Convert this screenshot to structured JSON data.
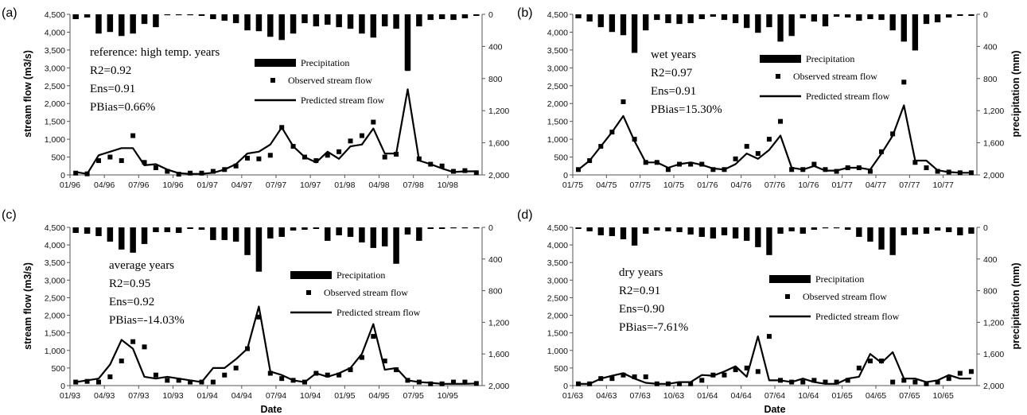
{
  "figure": {
    "left_ylabel": "stream flow (m3/s)",
    "right_ylabel": "precipitation (mm)",
    "xlabel": "Date"
  },
  "legend": {
    "precip": "Precipitation",
    "observed": "Observed stream flow",
    "predicted": "Predicted stream flow"
  },
  "colors": {
    "ink": "#000000",
    "background": "#ffffff"
  },
  "chart_data": [
    {
      "type": "line",
      "panel": "(a)",
      "stats": [
        "reference: high temp. years",
        "R2=0.92",
        "Ens=0.91",
        "PBias=0.66%"
      ],
      "ylim": [
        0,
        4500
      ],
      "y2lim": [
        2000,
        0
      ],
      "yticks": [
        "0",
        "500",
        "1,000",
        "1,500",
        "2,000",
        "2,500",
        "3,000",
        "3,500",
        "4,000",
        "4,500"
      ],
      "y2ticks": [
        "2,000",
        "1,600",
        "1,200",
        "800",
        "400",
        "0"
      ],
      "xticks": [
        "01/96",
        "04/96",
        "07/96",
        "10/96",
        "01/97",
        "04/97",
        "07/97",
        "10/97",
        "01/98",
        "04/98",
        "07/98",
        "10/98"
      ],
      "series": [
        {
          "name": "Precipitation",
          "type": "bar",
          "values": [
            60,
            40,
            240,
            220,
            270,
            240,
            120,
            160,
            10,
            10,
            10,
            20,
            60,
            80,
            110,
            200,
            210,
            280,
            320,
            240,
            110,
            150,
            130,
            160,
            180,
            240,
            290,
            150,
            180,
            700,
            150,
            70,
            60,
            70,
            50,
            20
          ]
        },
        {
          "name": "Observed stream flow",
          "type": "scatter",
          "values": [
            50,
            30,
            400,
            500,
            400,
            1100,
            350,
            200,
            100,
            20,
            50,
            50,
            100,
            150,
            250,
            470,
            450,
            550,
            1330,
            800,
            500,
            400,
            550,
            650,
            950,
            1100,
            1480,
            500,
            580,
            2980,
            450,
            300,
            250,
            100,
            120,
            60
          ]
        },
        {
          "name": "Predicted stream flow",
          "type": "line",
          "values": [
            80,
            30,
            550,
            650,
            750,
            750,
            270,
            300,
            150,
            50,
            30,
            30,
            60,
            150,
            300,
            600,
            650,
            850,
            1330,
            800,
            500,
            350,
            650,
            450,
            800,
            850,
            1300,
            600,
            600,
            2400,
            400,
            300,
            180,
            80,
            100,
            100
          ]
        }
      ]
    },
    {
      "type": "line",
      "panel": "(b)",
      "stats": [
        "wet years",
        "R2=0.97",
        "Ens=0.91",
        "PBias=15.30%"
      ],
      "ylim": [
        0,
        4500
      ],
      "y2lim": [
        2000,
        0
      ],
      "yticks": [
        "0",
        "500",
        "1,000",
        "1,500",
        "2,000",
        "2,500",
        "3,000",
        "3,500",
        "4,000",
        "4,500"
      ],
      "y2ticks": [
        "2,000",
        "1,600",
        "1,200",
        "800",
        "400",
        "0"
      ],
      "xticks": [
        "01/75",
        "04/75",
        "07/75",
        "10/75",
        "01/76",
        "04/76",
        "07/76",
        "10/76",
        "01/77",
        "04/77",
        "07/77",
        "10/77"
      ],
      "series": [
        {
          "name": "Precipitation",
          "type": "bar",
          "values": [
            50,
            90,
            160,
            220,
            260,
            480,
            200,
            70,
            110,
            120,
            110,
            60,
            30,
            70,
            110,
            170,
            230,
            160,
            340,
            270,
            50,
            90,
            150,
            30,
            40,
            80,
            60,
            70,
            200,
            340,
            450,
            120,
            100,
            40,
            20,
            20
          ]
        },
        {
          "name": "Observed stream flow",
          "type": "scatter",
          "values": [
            150,
            400,
            800,
            1200,
            2050,
            1000,
            350,
            350,
            150,
            300,
            300,
            300,
            150,
            150,
            450,
            800,
            600,
            1000,
            1500,
            150,
            150,
            300,
            150,
            100,
            200,
            200,
            100,
            650,
            1150,
            2600,
            350,
            200,
            100,
            80,
            60,
            60
          ]
        },
        {
          "name": "Predicted stream flow",
          "type": "line",
          "values": [
            150,
            400,
            800,
            1200,
            1650,
            950,
            350,
            350,
            200,
            300,
            350,
            280,
            180,
            150,
            300,
            600,
            450,
            700,
            1100,
            200,
            150,
            250,
            120,
            120,
            200,
            200,
            150,
            600,
            1100,
            1950,
            400,
            400,
            130,
            80,
            60,
            60
          ]
        }
      ]
    },
    {
      "type": "line",
      "panel": "(c)",
      "stats": [
        "average years",
        "R2=0.95",
        "Ens=0.92",
        "PBias=-14.03%"
      ],
      "ylim": [
        0,
        4500
      ],
      "y2lim": [
        2000,
        0
      ],
      "yticks": [
        "0",
        "500",
        "1,000",
        "1,500",
        "2,000",
        "2,500",
        "3,000",
        "3,500",
        "4,000",
        "4,500"
      ],
      "y2ticks": [
        "2,000",
        "1,600",
        "1,200",
        "800",
        "400",
        "0"
      ],
      "xticks": [
        "01/93",
        "04/93",
        "07/93",
        "10/93",
        "01/94",
        "04/94",
        "07/94",
        "10/94",
        "01/95",
        "04/95",
        "07/95",
        "10/95"
      ],
      "series": [
        {
          "name": "Precipitation",
          "type": "bar",
          "values": [
            70,
            80,
            110,
            180,
            280,
            320,
            210,
            60,
            60,
            70,
            20,
            30,
            160,
            160,
            180,
            350,
            560,
            140,
            120,
            40,
            30,
            20,
            170,
            100,
            120,
            190,
            260,
            240,
            460,
            90,
            170,
            20,
            20,
            10,
            10,
            10
          ]
        },
        {
          "name": "Observed stream flow",
          "type": "scatter",
          "values": [
            100,
            120,
            100,
            250,
            700,
            1250,
            1100,
            300,
            150,
            150,
            100,
            100,
            100,
            300,
            500,
            1050,
            1950,
            350,
            200,
            150,
            100,
            350,
            300,
            300,
            450,
            800,
            1400,
            700,
            450,
            150,
            100,
            50,
            50,
            100,
            100,
            60
          ]
        },
        {
          "name": "Predicted stream flow",
          "type": "line",
          "values": [
            100,
            150,
            200,
            600,
            1300,
            1050,
            250,
            200,
            250,
            200,
            150,
            100,
            500,
            500,
            750,
            1050,
            2250,
            400,
            300,
            150,
            100,
            350,
            250,
            350,
            500,
            900,
            1750,
            450,
            500,
            150,
            100,
            80,
            50,
            50,
            50,
            60
          ]
        }
      ]
    },
    {
      "type": "line",
      "panel": "(d)",
      "stats": [
        "dry years",
        "R2=0.91",
        "Ens=0.90",
        "PBias=-7.61%"
      ],
      "ylim": [
        0,
        4500
      ],
      "y2lim": [
        2000,
        0
      ],
      "yticks": [
        "0",
        "500",
        "1,000",
        "1,500",
        "2,000",
        "2,500",
        "3,000",
        "3,500",
        "4,000",
        "4,500"
      ],
      "y2ticks": [
        "2,000",
        "1,600",
        "1,200",
        "800",
        "400",
        "0"
      ],
      "xticks": [
        "01/63",
        "04/63",
        "07/63",
        "10/63",
        "01/64",
        "04/64",
        "07/64",
        "10/64",
        "01/65",
        "04/65",
        "07/65",
        "10/65"
      ],
      "series": [
        {
          "name": "Precipitation",
          "type": "bar",
          "values": [
            20,
            50,
            100,
            110,
            150,
            230,
            80,
            40,
            50,
            60,
            90,
            120,
            140,
            100,
            140,
            170,
            250,
            350,
            80,
            50,
            80,
            30,
            10,
            10,
            30,
            120,
            180,
            280,
            350,
            100,
            90,
            80,
            40,
            60,
            100,
            80
          ]
        },
        {
          "name": "Observed stream flow",
          "type": "scatter",
          "values": [
            50,
            50,
            200,
            200,
            300,
            250,
            250,
            50,
            50,
            50,
            50,
            150,
            300,
            300,
            450,
            500,
            400,
            1400,
            150,
            100,
            100,
            150,
            100,
            100,
            150,
            500,
            700,
            700,
            100,
            150,
            100,
            50,
            100,
            200,
            350,
            400
          ]
        },
        {
          "name": "Predicted stream flow",
          "type": "line",
          "values": [
            50,
            50,
            200,
            280,
            350,
            200,
            80,
            50,
            50,
            100,
            100,
            300,
            280,
            400,
            550,
            250,
            1400,
            150,
            150,
            100,
            200,
            100,
            50,
            50,
            200,
            250,
            900,
            650,
            950,
            200,
            200,
            100,
            150,
            300,
            200,
            200
          ]
        }
      ]
    }
  ]
}
